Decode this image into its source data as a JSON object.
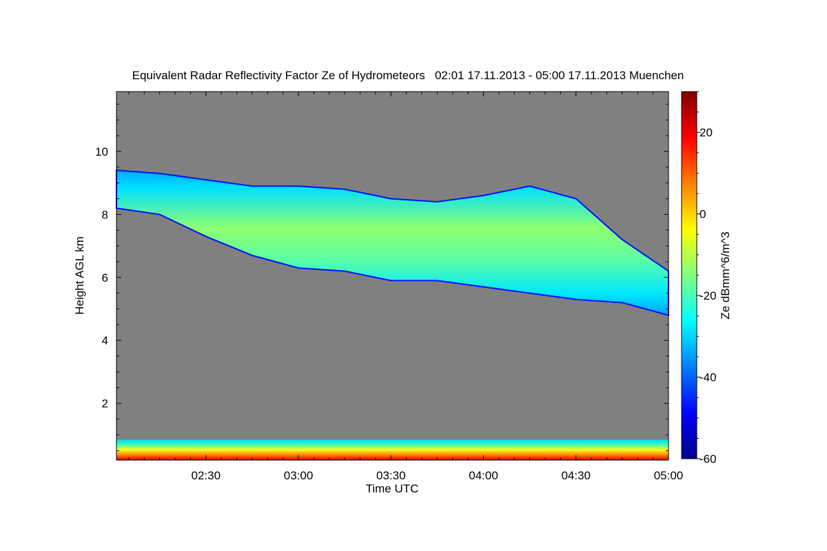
{
  "chart_data": {
    "type": "heatmap",
    "title": "Equivalent Radar Reflectivity Factor Ze of Hydrometeors   02:01 17.11.2013 - 05:00 17.11.2013 Muenchen",
    "xlabel": "Time UTC",
    "ylabel": "Height AGL km",
    "xlim": [
      "02:01",
      "05:00"
    ],
    "ylim": [
      0.2,
      11.9
    ],
    "x_ticks": [
      "02:30",
      "03:00",
      "03:30",
      "04:00",
      "04:30",
      "05:00"
    ],
    "x_tick_minutes": [
      150,
      180,
      210,
      240,
      270,
      300
    ],
    "y_ticks": [
      2,
      4,
      6,
      8,
      10
    ],
    "colorbar": {
      "label": "Ze dBmm^6/m^3",
      "range": [
        -60,
        30
      ],
      "ticks": [
        -60,
        -40,
        -20,
        0,
        20
      ],
      "colormap": "jet"
    },
    "background_color": "#808080",
    "layers": [
      {
        "name": "cloud layer",
        "time_minutes": [
          121,
          135,
          150,
          165,
          180,
          195,
          210,
          225,
          240,
          255,
          270,
          285,
          300
        ],
        "top_km": [
          9.4,
          9.3,
          9.1,
          8.9,
          8.9,
          8.8,
          8.5,
          8.4,
          8.6,
          8.9,
          8.5,
          7.2,
          6.2
        ],
        "base_km": [
          8.2,
          8.0,
          7.3,
          6.7,
          6.3,
          6.2,
          5.9,
          5.9,
          5.7,
          5.5,
          5.3,
          5.2,
          4.8
        ],
        "max_dbz": -15
      },
      {
        "name": "near-surface clutter",
        "time_minutes": [
          121,
          300
        ],
        "top_km": [
          0.85,
          0.85
        ],
        "base_km": [
          0.2,
          0.2
        ],
        "max_dbz": 25
      }
    ]
  }
}
